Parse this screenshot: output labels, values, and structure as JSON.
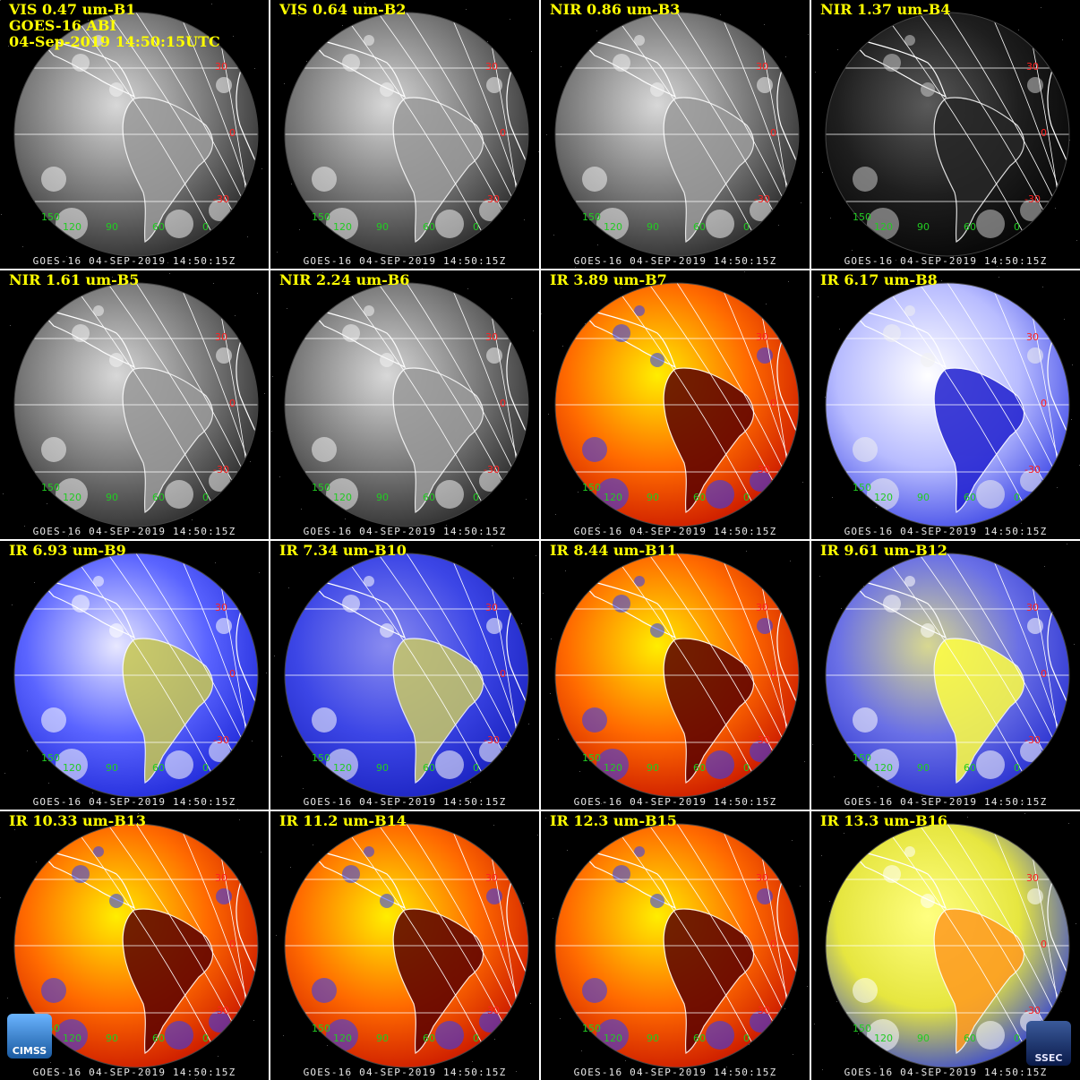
{
  "header": {
    "line1": "GOES-16 ABI",
    "line2": "04-Sep-2019 14:50:15UTC"
  },
  "footer_text": "GOES-16 04-SEP-2019 14:50:15Z",
  "grid_labels": {
    "lat": [
      "30",
      "0",
      "-30"
    ],
    "lon": [
      "150",
      "120",
      "90",
      "60",
      "0"
    ]
  },
  "colors": {
    "label": "#ffff00",
    "lat_label": "#ff2020",
    "lon_label": "#22cc22",
    "gridline": "#ffffff"
  },
  "panels": [
    {
      "label": "VIS 0.47 um-B1",
      "palette": "gray"
    },
    {
      "label": "VIS 0.64 um-B2",
      "palette": "gray"
    },
    {
      "label": "NIR 0.86 um-B3",
      "palette": "gray"
    },
    {
      "label": "NIR 1.37 um-B4",
      "palette": "dark"
    },
    {
      "label": "NIR 1.61 um-B5",
      "palette": "gray"
    },
    {
      "label": "NIR 2.24 um-B6",
      "palette": "gray"
    },
    {
      "label": "IR 3.89 um-B7",
      "palette": "fire"
    },
    {
      "label": "IR 6.17 um-B8",
      "palette": "wv-white"
    },
    {
      "label": "IR 6.93 um-B9",
      "palette": "wv-blue"
    },
    {
      "label": "IR 7.34 um-B10",
      "palette": "wv-olive"
    },
    {
      "label": "IR 8.44 um-B11",
      "palette": "fire"
    },
    {
      "label": "IR 9.61 um-B12",
      "palette": "ozone"
    },
    {
      "label": "IR 10.33 um-B13",
      "palette": "fire"
    },
    {
      "label": "IR 11.2 um-B14",
      "palette": "fire"
    },
    {
      "label": "IR 12.3 um-B15",
      "palette": "fire"
    },
    {
      "label": "IR 13.3 um-B16",
      "palette": "co2"
    }
  ],
  "logos": [
    {
      "name": "cimss",
      "text": "CIMSS"
    },
    {
      "name": "ssec",
      "text": "SSEC"
    }
  ]
}
